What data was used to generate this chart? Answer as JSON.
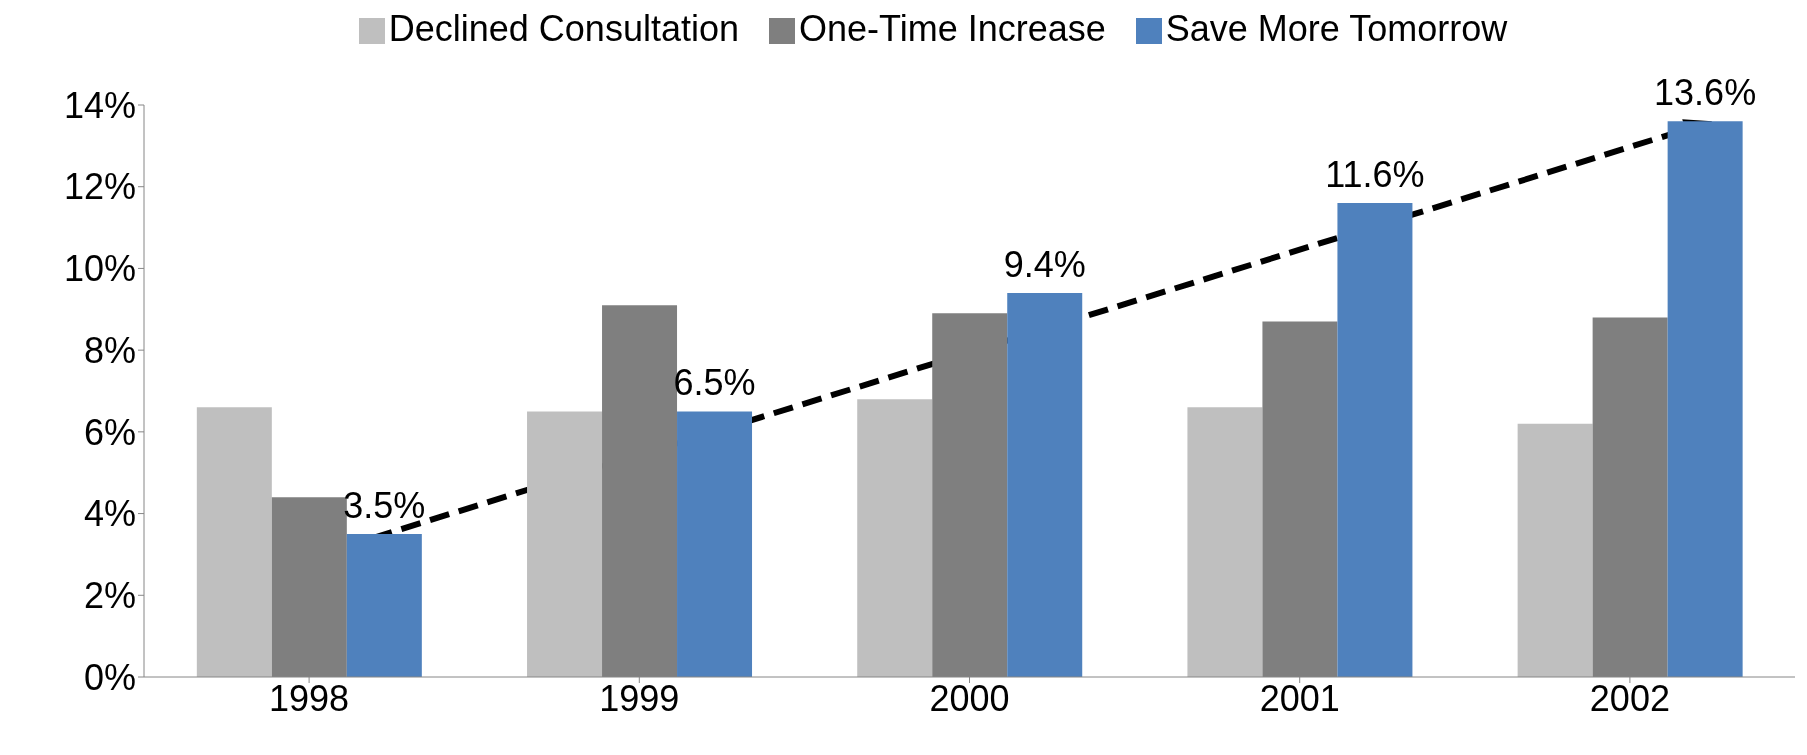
{
  "chart_data": {
    "type": "bar",
    "categories": [
      "1998",
      "1999",
      "2000",
      "2001",
      "2002"
    ],
    "series": [
      {
        "name": "Declined Consultation",
        "color": "#bfbfbf",
        "values": [
          6.6,
          6.5,
          6.8,
          6.6,
          6.2
        ]
      },
      {
        "name": "One-Time Increase",
        "color": "#7f7f7f",
        "values": [
          4.4,
          9.1,
          8.9,
          8.7,
          8.8
        ]
      },
      {
        "name": "Save More Tomorrow",
        "color": "#4f81bd",
        "values": [
          3.5,
          6.5,
          9.4,
          11.6,
          13.6
        ],
        "value_labels": [
          "3.5%",
          "6.5%",
          "9.4%",
          "11.6%",
          "13.6%"
        ]
      }
    ],
    "ylim": [
      0,
      14
    ],
    "yticks": [
      {
        "value": 0,
        "label": "0%"
      },
      {
        "value": 2,
        "label": "2%"
      },
      {
        "value": 4,
        "label": "4%"
      },
      {
        "value": 6,
        "label": "6%"
      },
      {
        "value": 8,
        "label": "8%"
      },
      {
        "value": 10,
        "label": "10%"
      },
      {
        "value": 12,
        "label": "12%"
      },
      {
        "value": 14,
        "label": "14%"
      }
    ],
    "grid": false,
    "legend": "top"
  }
}
